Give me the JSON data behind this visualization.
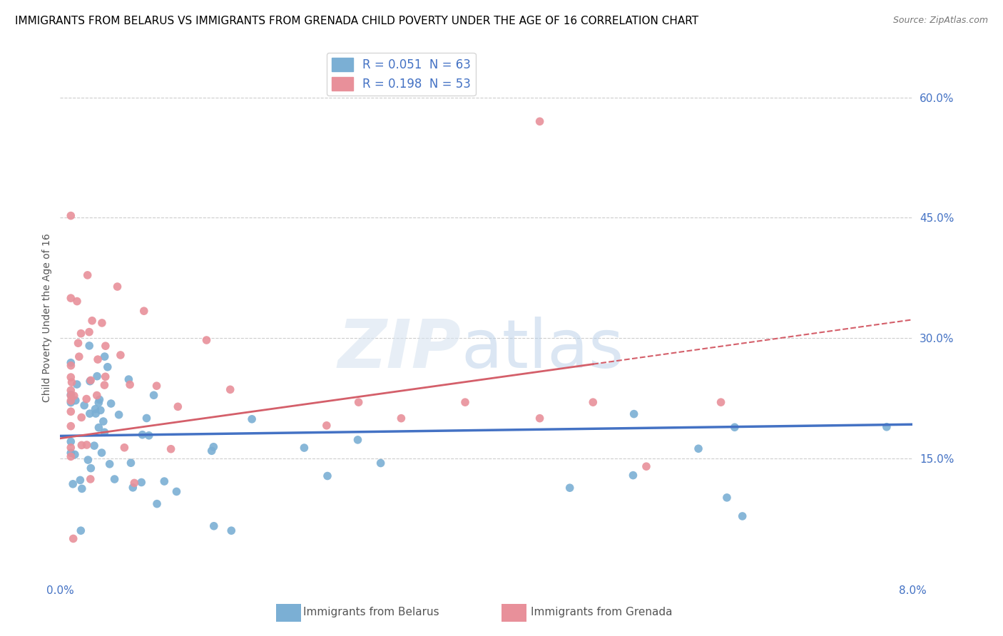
{
  "title": "IMMIGRANTS FROM BELARUS VS IMMIGRANTS FROM GRENADA CHILD POVERTY UNDER THE AGE OF 16 CORRELATION CHART",
  "source": "Source: ZipAtlas.com",
  "ylabel": "Child Poverty Under the Age of 16",
  "y_ticks": [
    0.15,
    0.3,
    0.45,
    0.6
  ],
  "y_tick_labels": [
    "15.0%",
    "30.0%",
    "45.0%",
    "60.0%"
  ],
  "xlim": [
    0.0,
    0.08
  ],
  "ylim": [
    0.0,
    0.65
  ],
  "watermark": "ZIPatlas",
  "belarus_color": "#7bafd4",
  "grenada_color": "#e8909a",
  "trendline_belarus_color": "#4472c4",
  "trendline_grenada_color": "#d45f6a",
  "background_color": "#ffffff",
  "grid_color": "#cccccc",
  "axis_color": "#4472c4",
  "title_fontsize": 11,
  "label_fontsize": 10,
  "tick_fontsize": 11,
  "source_fontsize": 9,
  "belarus_intercept": 0.178,
  "belarus_slope": 0.18,
  "grenada_intercept": 0.175,
  "grenada_slope": 1.85
}
